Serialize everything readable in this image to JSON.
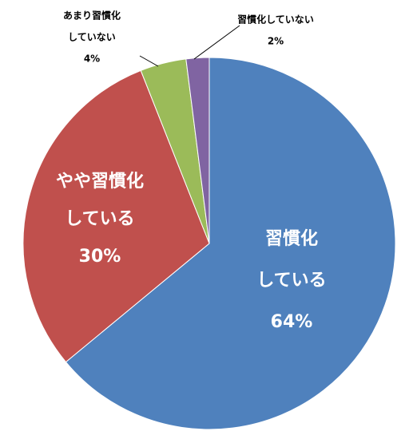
{
  "chart_data": {
    "type": "pie",
    "categories": [
      [
        "習慣化",
        "している"
      ],
      [
        "やや習慣化",
        "している"
      ],
      [
        "あまり習慣化",
        "していない"
      ],
      [
        "習慣化していない"
      ]
    ],
    "values": [
      64,
      30,
      4,
      2
    ],
    "value_labels": [
      "64%",
      "30%",
      "4%",
      "2%"
    ],
    "colors": [
      "#4f81bd",
      "#c0504d",
      "#9bbb59",
      "#8064a2"
    ]
  }
}
